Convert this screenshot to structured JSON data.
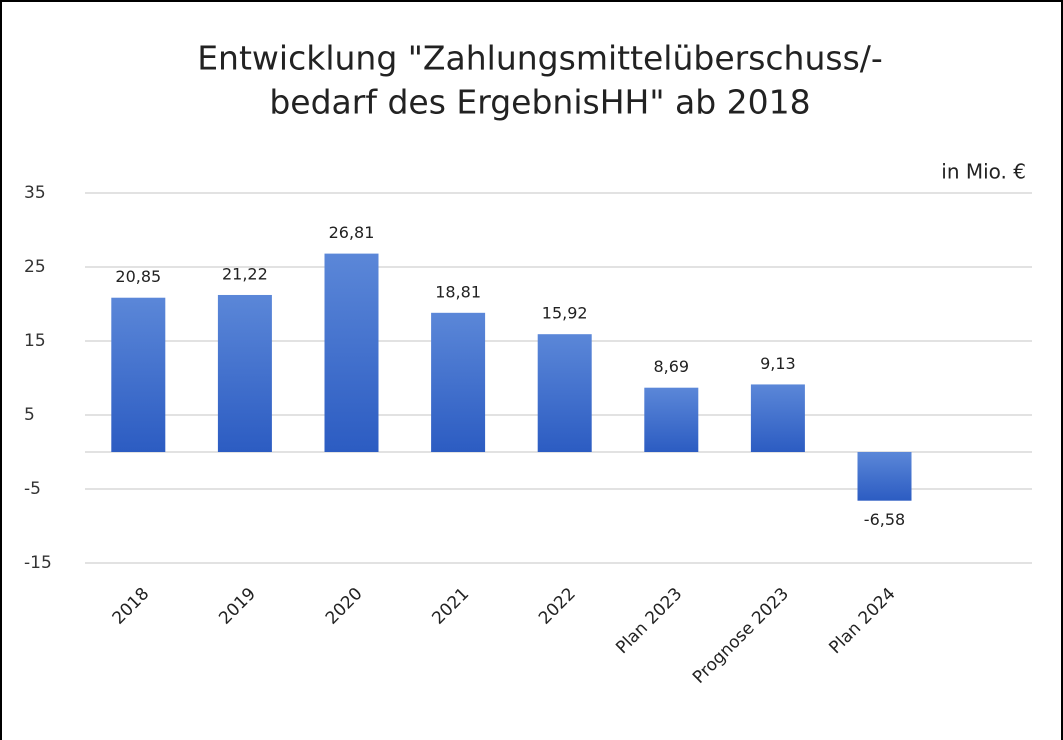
{
  "chart_data": {
    "type": "bar",
    "title": [
      "Entwicklung \"Zahlungsmittelüberschuss/-",
      "bedarf des ErgebnisHH\" ab 2018"
    ],
    "subtitle": "in Mio. €",
    "categories": [
      "2018",
      "2019",
      "2020",
      "2021",
      "2022",
      "Plan 2023",
      "Prognose 2023",
      "Plan 2024"
    ],
    "values": [
      20.85,
      21.22,
      26.81,
      18.81,
      15.92,
      8.69,
      9.13,
      -6.58
    ],
    "value_labels": [
      "20,85",
      "21,22",
      "26,81",
      "18,81",
      "15,92",
      "8,69",
      "9,13",
      "-6,58"
    ],
    "color": "#4472c4",
    "ylim": [
      -15,
      35
    ],
    "yticks": [
      -15,
      -5,
      5,
      15,
      25,
      35
    ],
    "grid": true
  }
}
